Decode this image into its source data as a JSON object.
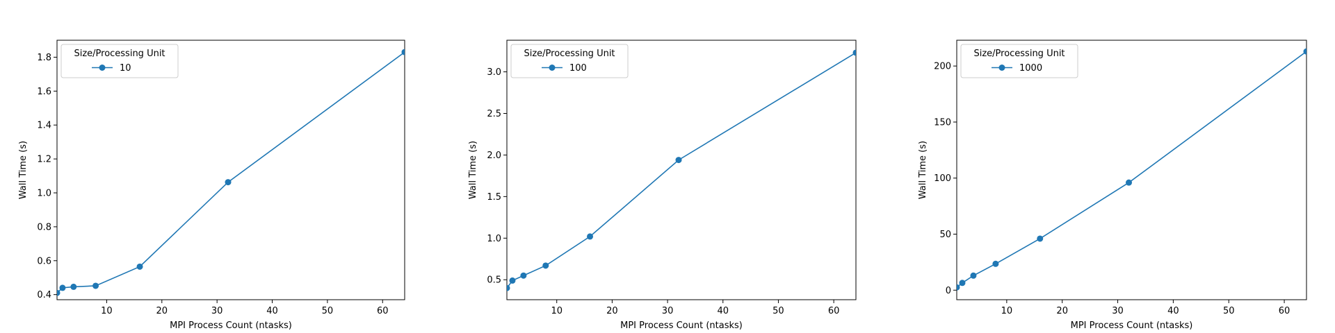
{
  "chart_data": [
    {
      "type": "line",
      "xlabel": "MPI Process Count (ntasks)",
      "ylabel": "Wall Time (s)",
      "xlim": [
        1,
        64
      ],
      "ylim": [
        0.37,
        1.9
      ],
      "xticks": [
        10,
        20,
        30,
        40,
        50,
        60
      ],
      "yticks": [
        0.4,
        0.6,
        0.8,
        1.0,
        1.2,
        1.4,
        1.6,
        1.8
      ],
      "ytick_decimals": 1,
      "grid": false,
      "legend": {
        "title": "Size/Processing Unit",
        "placement": "upper-left"
      },
      "series": [
        {
          "name": "10",
          "color": "#1f77b4",
          "marker": "circle",
          "x": [
            1,
            2,
            4,
            8,
            16,
            32,
            64
          ],
          "y": [
            0.41,
            0.44,
            0.446,
            0.452,
            0.565,
            1.063,
            1.83
          ]
        }
      ]
    },
    {
      "type": "line",
      "xlabel": "MPI Process Count (ntasks)",
      "ylabel": "Wall Time (s)",
      "xlim": [
        1,
        64
      ],
      "ylim": [
        0.26,
        3.38
      ],
      "xticks": [
        10,
        20,
        30,
        40,
        50,
        60
      ],
      "yticks": [
        0.5,
        1.0,
        1.5,
        2.0,
        2.5,
        3.0
      ],
      "ytick_decimals": 1,
      "grid": false,
      "legend": {
        "title": "Size/Processing Unit",
        "placement": "upper-left"
      },
      "series": [
        {
          "name": "100",
          "color": "#1f77b4",
          "marker": "circle",
          "x": [
            1,
            2,
            4,
            8,
            16,
            32,
            64
          ],
          "y": [
            0.4,
            0.49,
            0.55,
            0.67,
            1.02,
            1.94,
            3.23
          ]
        }
      ]
    },
    {
      "type": "line",
      "xlabel": "MPI Process Count (ntasks)",
      "ylabel": "Wall Time (s)",
      "xlim": [
        1,
        64
      ],
      "ylim": [
        -8.5,
        223
      ],
      "xticks": [
        10,
        20,
        30,
        40,
        50,
        60
      ],
      "yticks": [
        0,
        50,
        100,
        150,
        200
      ],
      "ytick_decimals": 0,
      "grid": false,
      "legend": {
        "title": "Size/Processing Unit",
        "placement": "upper-left"
      },
      "series": [
        {
          "name": "1000",
          "color": "#1f77b4",
          "marker": "circle",
          "x": [
            1,
            2,
            4,
            8,
            16,
            32,
            64
          ],
          "y": [
            2.5,
            6.5,
            13,
            23.5,
            46,
            96,
            213
          ]
        }
      ]
    }
  ]
}
